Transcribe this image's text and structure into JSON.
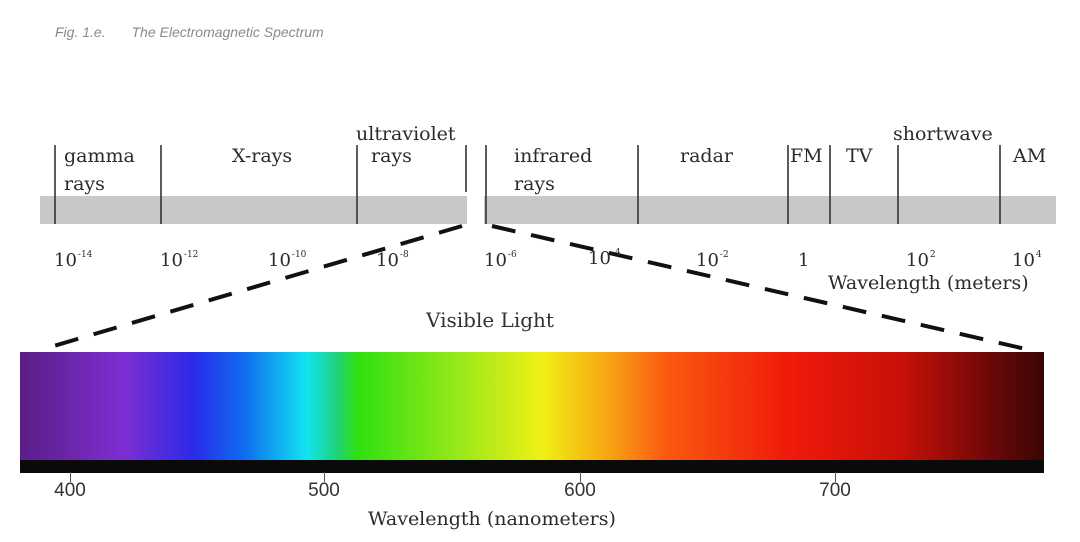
{
  "caption": {
    "figure": "Fig. 1.e.",
    "title": "The Electromagnetic Spectrum"
  },
  "bands": {
    "gamma": "gamma rays",
    "xrays": "X-rays",
    "ultraviolet": "ultraviolet",
    "ultraviolet_sub": "rays",
    "infrared": "infrared rays",
    "radar": "radar",
    "fm": "FM",
    "tv": "TV",
    "shortwave": "shortwave",
    "am": "AM"
  },
  "scale": {
    "e1": {
      "base": "10",
      "exp": "-14"
    },
    "e2": {
      "base": "10",
      "exp": "-12"
    },
    "e3": {
      "base": "10",
      "exp": "-10"
    },
    "e4": {
      "base": "10",
      "exp": "-8"
    },
    "e5": {
      "base": "10",
      "exp": "-6"
    },
    "e6": {
      "base": "10",
      "exp": "-4"
    },
    "e7": {
      "base": "10",
      "exp": "-2"
    },
    "e8": {
      "base": "1",
      "exp": ""
    },
    "e9": {
      "base": "10",
      "exp": "2"
    },
    "e10": {
      "base": "10",
      "exp": "4"
    }
  },
  "scale_title": "Wavelength (meters)",
  "visible_title": "Visible Light",
  "nm_axis": {
    "l400": "400",
    "l500": "500",
    "l600": "600",
    "l700": "700"
  },
  "nm_title": "Wavelength (nanometers)",
  "colors": {
    "bar": "#c8c8c8",
    "divider": "#333333",
    "dash": "#111111"
  }
}
